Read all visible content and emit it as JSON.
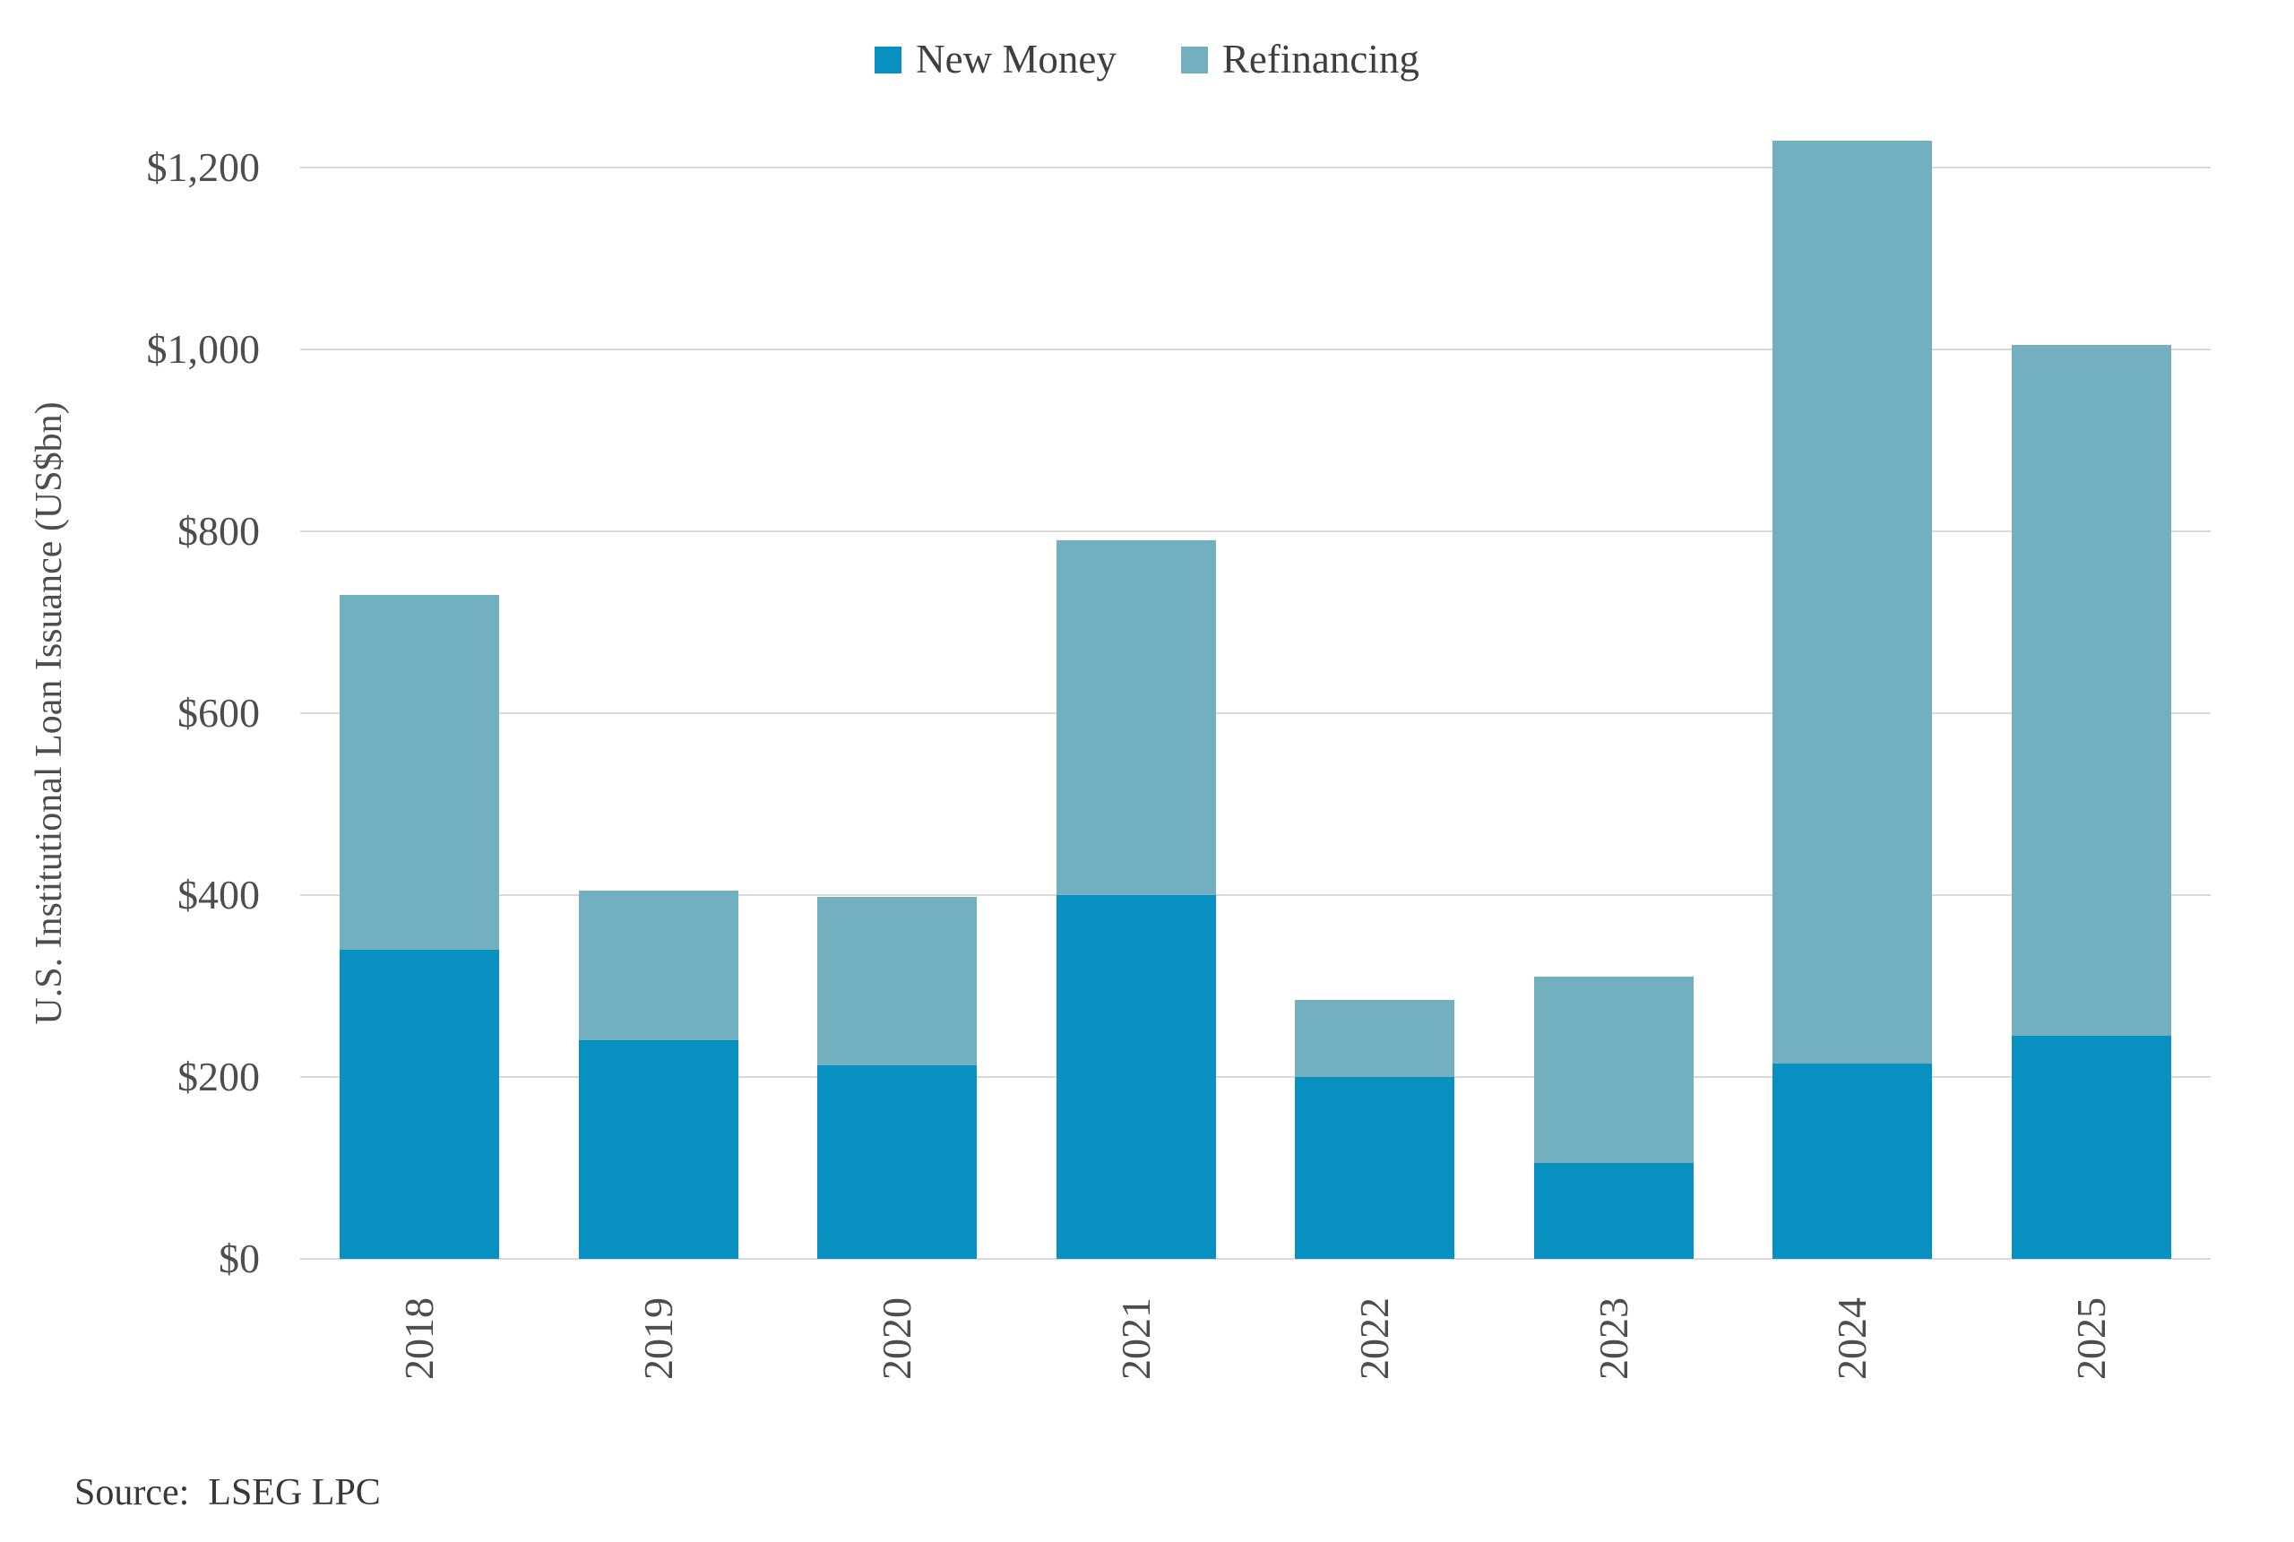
{
  "chart_data": {
    "type": "bar",
    "stacked": true,
    "categories": [
      "2018",
      "2019",
      "2020",
      "2021",
      "2022",
      "2023",
      "2024",
      "2025"
    ],
    "series": [
      {
        "name": "New Money",
        "color": "#0890c0",
        "values": [
          340,
          240,
          213,
          400,
          200,
          105,
          215,
          245
        ]
      },
      {
        "name": "Refinancing",
        "color": "#72afbf",
        "values": [
          390,
          165,
          185,
          390,
          85,
          205,
          1015,
          760
        ]
      }
    ],
    "totals": [
      730,
      405,
      398,
      790,
      285,
      310,
      1230,
      1005
    ],
    "title": "",
    "xlabel": "",
    "ylabel": "U.S. Institutional Loan Issuance (US$bn)",
    "ylim": [
      0,
      1290
    ],
    "yticks": [
      {
        "value": 0,
        "label": "$0"
      },
      {
        "value": 200,
        "label": "$200"
      },
      {
        "value": 400,
        "label": "$400"
      },
      {
        "value": 600,
        "label": "$600"
      },
      {
        "value": 800,
        "label": "$800"
      },
      {
        "value": 1000,
        "label": "$1,000"
      },
      {
        "value": 1200,
        "label": "$1,200"
      }
    ],
    "grid": "horizontal",
    "gridline_color": "#d9d9d9",
    "legend_position": "top-center",
    "x_tick_rotation": -90
  },
  "source": {
    "text": "Source:  LSEG LPC"
  }
}
